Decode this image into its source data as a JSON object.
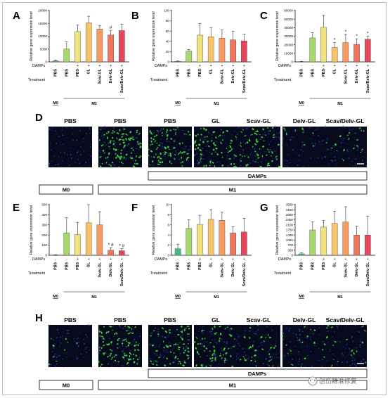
{
  "colors": [
    "#3dbf86",
    "#a6d96a",
    "#f2e27d",
    "#f7c469",
    "#f59a60",
    "#f0755a",
    "#e8475a"
  ],
  "watermark": "创伤精准修复",
  "treatment_label": "Treatment",
  "damps_label": "DAMPs",
  "damps_signs": [
    "-",
    "-",
    "+",
    "+",
    "+",
    "+",
    "+"
  ],
  "treatments": [
    "PBS",
    "PBS",
    "PBS",
    "GL",
    "Scav-GL",
    "Delv-GL",
    "Scav/Delv-GL"
  ],
  "m0_label": "M0",
  "m1_label": "M1",
  "damps_box_label": "DAMPs",
  "micro_rows": [
    {
      "label": "D",
      "titles": [
        "PBS",
        "PBS",
        "PBS",
        "GL",
        "Scav-GL",
        "Delv-GL",
        "Scav/Delv-GL"
      ],
      "green": [
        0,
        0.55,
        0.5,
        0.45,
        0.35,
        0.05,
        0.12
      ]
    },
    {
      "label": "H",
      "titles": [
        "PBS",
        "PBS",
        "PBS",
        "GL",
        "Scav-GL",
        "Delv-GL",
        "Scav/Delv-GL"
      ],
      "green": [
        0.05,
        0.55,
        0.4,
        0.35,
        0.2,
        0.1,
        0.12
      ]
    }
  ],
  "chart_data": [
    {
      "label": "A",
      "type": "bar",
      "ylabel": "Relative gene expression level",
      "yticks": [
        0,
        5000,
        10000,
        15000,
        20000
      ],
      "ylim": [
        0,
        20000
      ],
      "values": [
        400,
        5000,
        11800,
        15200,
        12800,
        10500,
        12200
      ],
      "errors": [
        300,
        2800,
        2500,
        2600,
        1400,
        1800,
        2500
      ],
      "annotations": [
        "",
        "",
        "",
        "",
        "",
        "#",
        ""
      ]
    },
    {
      "label": "B",
      "type": "bar",
      "ylabel": "Relative gene expression level",
      "yticks": [
        0,
        20,
        40,
        60,
        80,
        100
      ],
      "ylim": [
        0,
        100
      ],
      "values": [
        1,
        21,
        52,
        49,
        46,
        43,
        41
      ],
      "errors": [
        1,
        3,
        23,
        18,
        16,
        17,
        13
      ],
      "annotations": [
        "",
        "",
        "",
        "",
        "",
        "",
        ""
      ]
    },
    {
      "label": "C",
      "type": "bar",
      "ylabel": "Relative gene expression level",
      "yticks": [
        0,
        10000,
        20000,
        30000,
        40000,
        50000,
        60000
      ],
      "ylim": [
        0,
        60000
      ],
      "values": [
        300,
        28000,
        40500,
        17000,
        22500,
        20500,
        26500
      ],
      "errors": [
        300,
        6000,
        14000,
        5500,
        9500,
        6500,
        3500
      ],
      "annotations": [
        "",
        "",
        "",
        "*",
        "*",
        "*",
        "*"
      ]
    },
    {
      "label": "E",
      "type": "bar",
      "ylabel": "Relative gene expression level",
      "yticks": [
        0,
        100,
        200,
        300,
        400,
        500
      ],
      "ylim": [
        0,
        500
      ],
      "values": [
        3,
        220,
        205,
        320,
        300,
        50,
        45
      ],
      "errors": [
        3,
        150,
        120,
        180,
        130,
        25,
        20
      ],
      "annotations": [
        "",
        "",
        "",
        "",
        "",
        "* #",
        "* #"
      ]
    },
    {
      "label": "F",
      "type": "bar",
      "ylabel": "Relative gene expression level",
      "yticks": [
        0,
        2,
        4,
        6,
        8,
        10
      ],
      "ylim": [
        0,
        10
      ],
      "values": [
        1.3,
        5.3,
        6.1,
        7.1,
        6.9,
        4.4,
        4.6
      ],
      "errors": [
        0.9,
        1.7,
        1.8,
        1.9,
        1.6,
        1.2,
        2.7
      ],
      "annotations": [
        "",
        "",
        "",
        "",
        "",
        "",
        ""
      ]
    },
    {
      "label": "G",
      "type": "bar",
      "ylabel": "Relative gene expression level",
      "yticks": [
        0,
        350,
        700,
        1050,
        1400,
        1750,
        2100,
        2450,
        2800,
        3150,
        3500
      ],
      "ylim": [
        0,
        3500
      ],
      "values": [
        100,
        1750,
        1950,
        2200,
        2300,
        1400,
        1400
      ],
      "errors": [
        60,
        550,
        450,
        850,
        1050,
        600,
        1300
      ],
      "annotations": [
        "",
        "",
        "",
        "",
        "",
        "",
        ""
      ]
    }
  ]
}
